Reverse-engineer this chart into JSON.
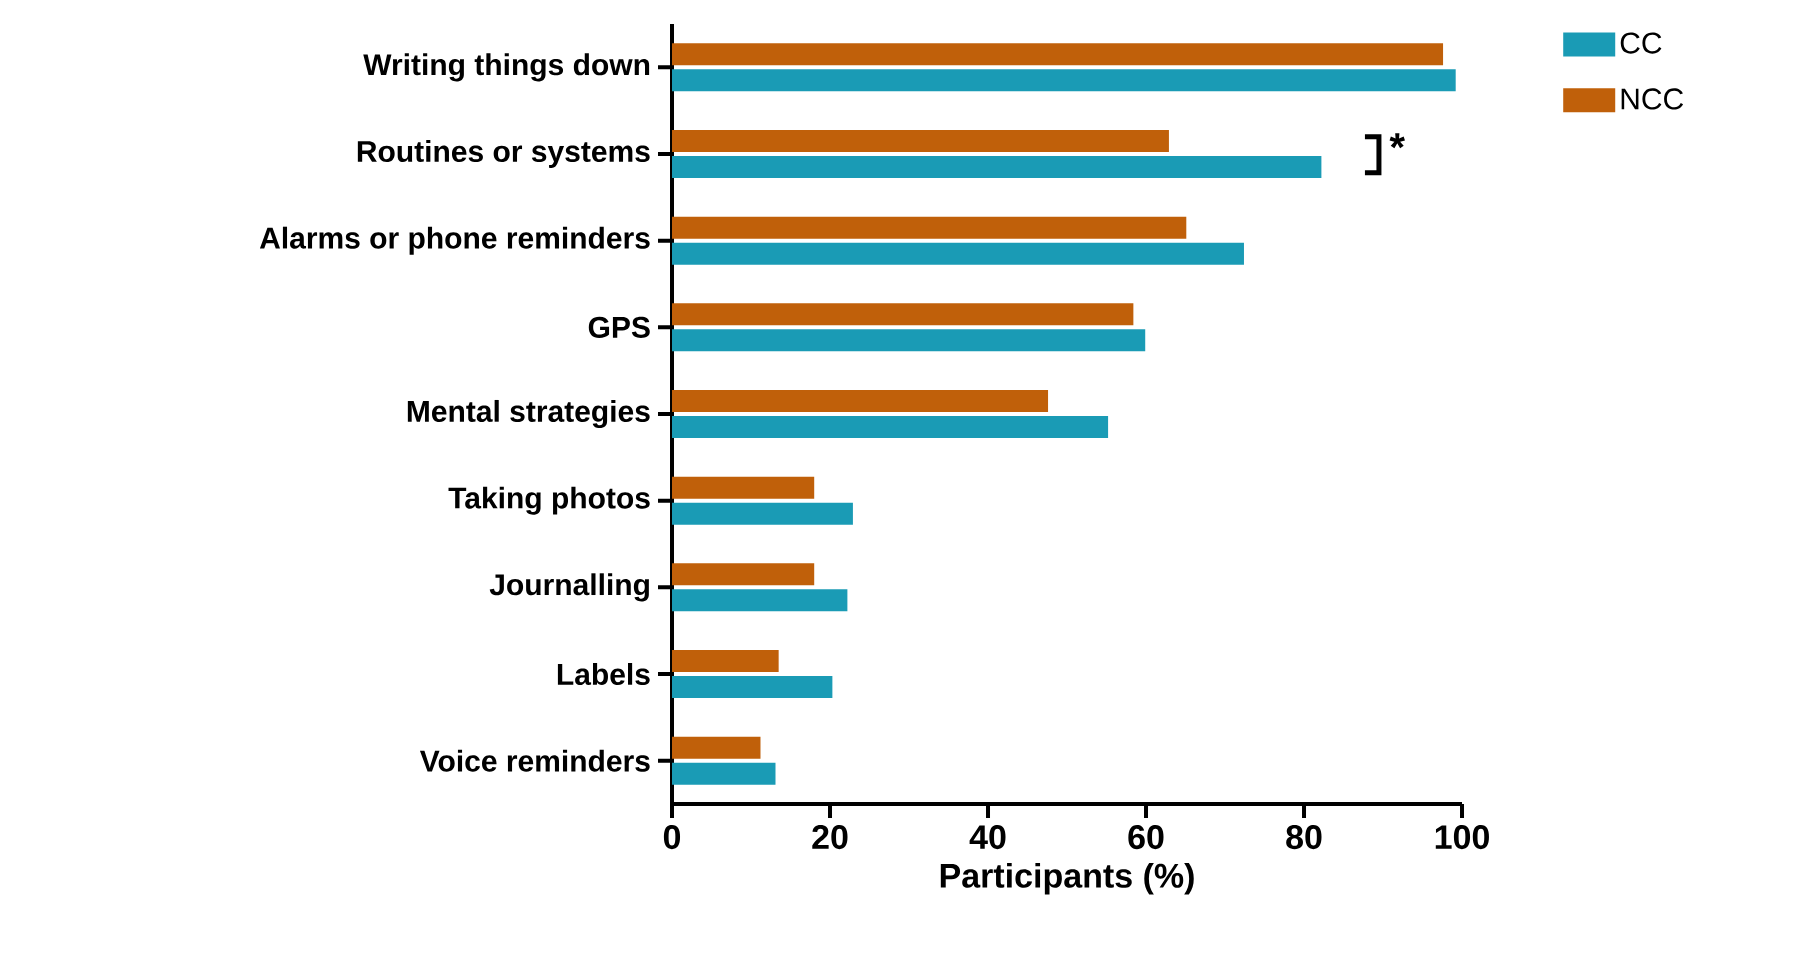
{
  "chart_data": {
    "type": "bar",
    "orientation": "horizontal",
    "xlabel": "Participants (%)",
    "categories": [
      "Writing things down",
      "Routines or systems",
      "Alarms or phone reminders",
      "GPS",
      "Mental strategies",
      "Taking photos",
      "Journalling",
      "Labels",
      "Voice reminders"
    ],
    "series": [
      {
        "name": "CC",
        "color": "#1a9bb5",
        "values": [
          99.2,
          82.2,
          72.4,
          59.9,
          55.2,
          22.9,
          22.2,
          20.3,
          13.1
        ]
      },
      {
        "name": "NCC",
        "color": "#c0600a",
        "values": [
          97.6,
          62.9,
          65.1,
          58.4,
          47.6,
          18.0,
          18.0,
          13.5,
          11.2
        ]
      }
    ],
    "xlim": [
      0,
      100
    ],
    "xticks": [
      0,
      20,
      40,
      60,
      80,
      100
    ],
    "grid": false,
    "legend": "top right",
    "annotations": [
      "*"
    ]
  }
}
